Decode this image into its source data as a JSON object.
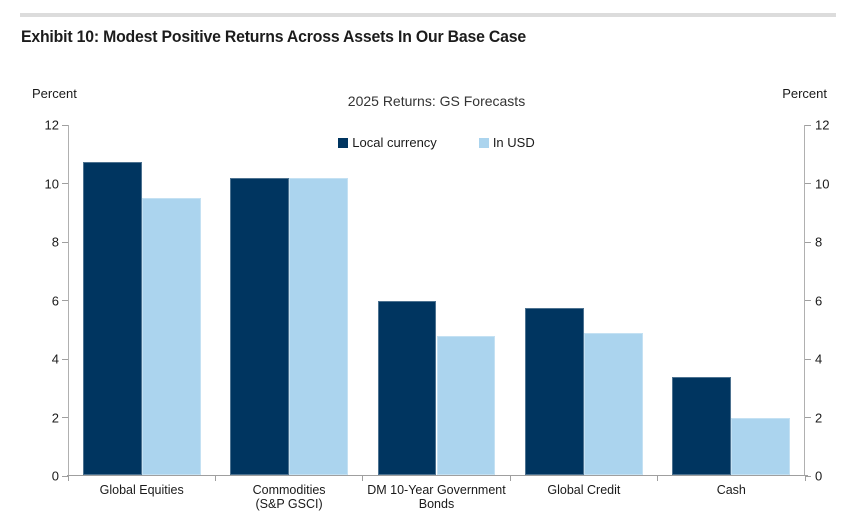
{
  "header": {
    "title": "Exhibit 10: Modest Positive Returns Across Assets In Our Base Case"
  },
  "chart": {
    "title": "2025 Returns: GS Forecasts",
    "left_axis_caption": "Percent",
    "right_axis_caption": "Percent",
    "colors": {
      "navy": "#003560",
      "light_blue": "#abd4ee",
      "axis_line": "#b0b0b0"
    }
  },
  "chart_data": {
    "type": "bar",
    "title": "2025 Returns: GS Forecasts",
    "categories": [
      "Global Equities",
      "Commodities\n(S&P GSCI)",
      "DM 10-Year Government\nBonds",
      "Global Credit",
      "Cash"
    ],
    "series": [
      {
        "name": "Local currency",
        "color": "#003560",
        "values": [
          10.75,
          10.2,
          6.0,
          5.75,
          3.4
        ]
      },
      {
        "name": "In USD",
        "color": "#abd4ee",
        "values": [
          9.5,
          10.2,
          4.8,
          4.9,
          2.0
        ]
      }
    ],
    "xlabel": "",
    "ylabel": "Percent",
    "ylim": [
      0,
      12
    ],
    "yticks": [
      0,
      2,
      4,
      6,
      8,
      10,
      12
    ],
    "grid": false,
    "legend_position": "top-center",
    "dual_y_axis": true
  }
}
